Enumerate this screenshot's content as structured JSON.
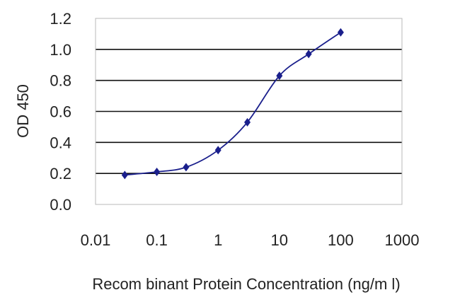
{
  "chart_data": {
    "type": "line",
    "xscale": "log",
    "xlabel": "Recom binant Protein Concentration (ng/m l)",
    "ylabel": "OD 450",
    "xlim": [
      0.01,
      1000
    ],
    "ylim": [
      0,
      1.2
    ],
    "x_ticks": [
      "0.01",
      "0.1",
      "1",
      "10",
      "100",
      "1000"
    ],
    "y_ticks": [
      "0.0",
      "0.2",
      "0.4",
      "0.6",
      "0.8",
      "1.0",
      "1.2"
    ],
    "grid": "horizontal",
    "series": [
      {
        "x": [
          0.03,
          0.1,
          0.3,
          1,
          3,
          10,
          30,
          100
        ],
        "values": [
          0.19,
          0.21,
          0.24,
          0.35,
          0.53,
          0.83,
          0.97,
          1.11
        ]
      }
    ],
    "colors": {
      "series": "#1a1f8c",
      "gridline": "#111111",
      "frame": "#b8b8b8"
    }
  }
}
